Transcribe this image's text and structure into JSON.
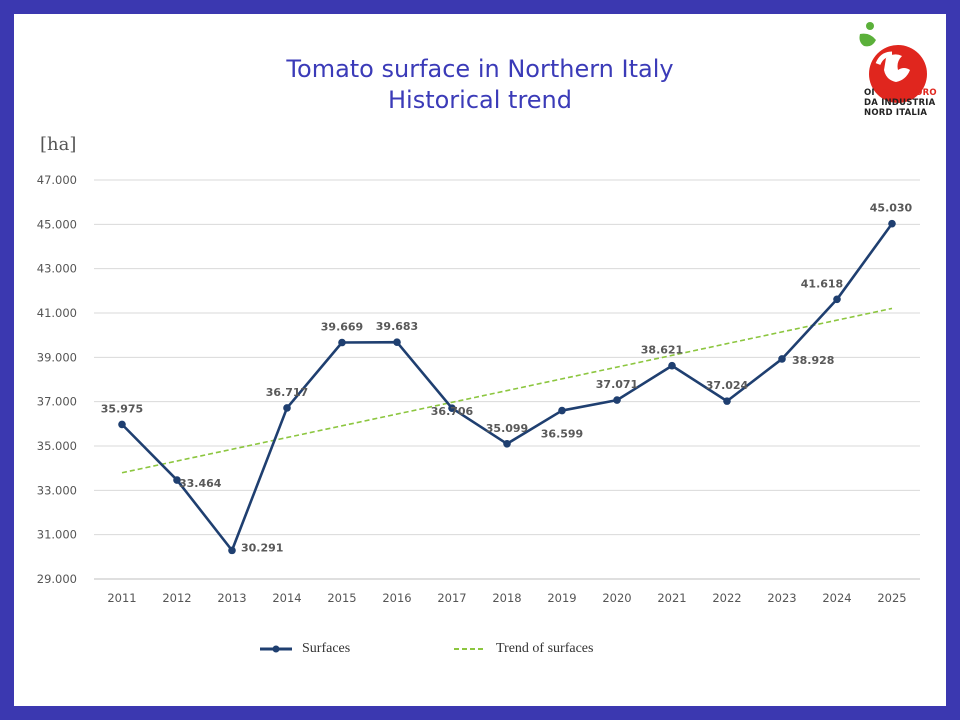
{
  "title_line1": "Tomato surface in Northern Italy",
  "title_line2": "Historical trend",
  "unit_label": "[ha]",
  "logo": {
    "line1_a": "OI ",
    "line1_b": "POMODORO",
    "line2": "DA INDUSTRIA",
    "line3": "NORD ITALIA",
    "accent_red": "#e0261e",
    "accent_green": "#5bb03a"
  },
  "legend": {
    "surfaces": "Surfaces",
    "trend": "Trend of surfaces"
  },
  "chart_data": {
    "type": "line",
    "x": [
      "2011",
      "2012",
      "2013",
      "2014",
      "2015",
      "2016",
      "2017",
      "2018",
      "2019",
      "2020",
      "2021",
      "2022",
      "2023",
      "2024",
      "2025"
    ],
    "series": [
      {
        "name": "Surfaces",
        "color": "#1f3f70",
        "values": [
          35975,
          33464,
          30291,
          36717,
          39669,
          39683,
          36706,
          35099,
          36599,
          37071,
          38621,
          37024,
          38928,
          41618,
          45030
        ],
        "labels": [
          "35.975",
          "33.464",
          "30.291",
          "36.717",
          "39.669",
          "39.683",
          "36.706",
          "35.099",
          "36.599",
          "37.071",
          "38.621",
          "37.024",
          "38.928",
          "41.618",
          "45.030"
        ]
      },
      {
        "name": "Trend of surfaces",
        "color": "#8cc63f",
        "style": "dashed",
        "linear_trend": true
      }
    ],
    "ylim": [
      29000,
      47000
    ],
    "yticks": [
      29000,
      31000,
      33000,
      35000,
      37000,
      39000,
      41000,
      43000,
      45000,
      47000
    ],
    "ytick_labels": [
      "29.000",
      "31.000",
      "33.000",
      "35.000",
      "37.000",
      "39.000",
      "41.000",
      "43.000",
      "45.000",
      "47.000"
    ],
    "grid": true,
    "legend_position": "bottom"
  }
}
